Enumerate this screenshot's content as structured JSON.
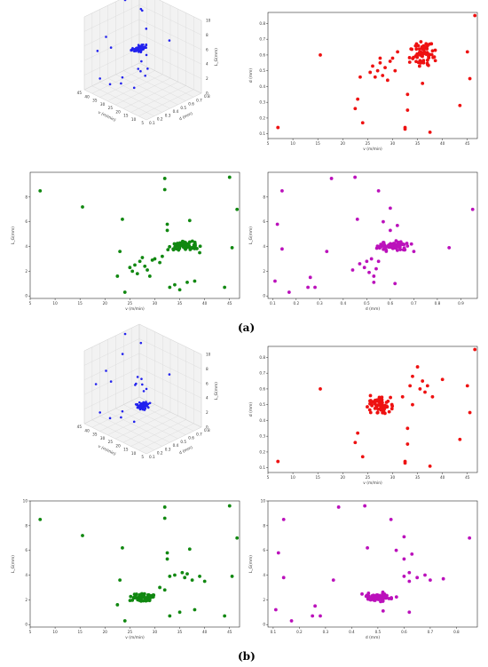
{
  "labels": {
    "a": "(a)",
    "b": "(b)"
  },
  "chart_data": [
    {
      "panel": "(a)",
      "id": "a-3d",
      "type": "scatter3d",
      "xlabel": "v (m/min)",
      "ylabel": "d (mm)",
      "zlabel": "L_G(mm)",
      "xlim": [
        5,
        45
      ],
      "ylim": [
        0.1,
        0.8
      ],
      "zlim": [
        0,
        10
      ],
      "xticks": [
        5,
        10,
        15,
        20,
        25,
        30,
        35,
        40,
        45
      ],
      "yticks": [
        0.1,
        0.2,
        0.3,
        0.4,
        0.5,
        0.6,
        0.7,
        0.8
      ],
      "zticks": [
        0,
        2,
        4,
        6,
        8,
        10
      ],
      "color": "#2222ee",
      "cluster": {
        "v": [
          32,
          39
        ],
        "d": [
          0.5,
          0.72
        ],
        "L": [
          3.5,
          4.5
        ],
        "n": 70
      },
      "points": [
        [
          7,
          0.14,
          8.5
        ],
        [
          15.5,
          0.6,
          7.2
        ],
        [
          23,
          0.3,
          1.5
        ],
        [
          24,
          0.17,
          3.5
        ],
        [
          26,
          0.5,
          1.8
        ],
        [
          27,
          0.55,
          2.4
        ],
        [
          28,
          0.45,
          2.8
        ],
        [
          29,
          0.5,
          2.1
        ],
        [
          31,
          0.55,
          3.0
        ],
        [
          33,
          0.6,
          9.5
        ],
        [
          32,
          0.12,
          8.5
        ],
        [
          34,
          0.35,
          0.7
        ],
        [
          36,
          0.25,
          0.9
        ],
        [
          37,
          0.11,
          6.1
        ],
        [
          38,
          0.75,
          5.7
        ],
        [
          44,
          0.28,
          0.7
        ],
        [
          45.5,
          0.45,
          3.9
        ],
        [
          45,
          0.62,
          9.6
        ],
        [
          46.5,
          0.85,
          7.0
        ]
      ]
    },
    {
      "panel": "(a)",
      "id": "a-vd",
      "type": "scatter",
      "xlabel": "v (m/min)",
      "ylabel": "d (mm)",
      "xlim": [
        5,
        47
      ],
      "ylim": [
        0.07,
        0.87
      ],
      "xticks": [
        5,
        10,
        15,
        20,
        25,
        30,
        35,
        40,
        45
      ],
      "yticks": [
        0.1,
        0.2,
        0.3,
        0.4,
        0.5,
        0.6,
        0.7,
        0.8
      ],
      "color": "#ee1111",
      "cluster": {
        "x": [
          32,
          40
        ],
        "y": [
          0.5,
          0.72
        ],
        "n": 65
      },
      "points": [
        [
          7,
          0.14
        ],
        [
          15.5,
          0.6
        ],
        [
          22.5,
          0.26
        ],
        [
          23,
          0.32
        ],
        [
          23.5,
          0.46
        ],
        [
          24,
          0.17
        ],
        [
          25.5,
          0.49
        ],
        [
          26,
          0.53
        ],
        [
          26.5,
          0.46
        ],
        [
          27,
          0.5
        ],
        [
          27.5,
          0.55
        ],
        [
          28,
          0.47
        ],
        [
          28.5,
          0.52
        ],
        [
          29,
          0.44
        ],
        [
          29.5,
          0.56
        ],
        [
          30,
          0.58
        ],
        [
          30.5,
          0.5
        ],
        [
          31,
          0.62
        ],
        [
          27.5,
          0.58
        ],
        [
          33,
          0.35
        ],
        [
          33,
          0.25
        ],
        [
          32.5,
          0.14
        ],
        [
          32.5,
          0.13
        ],
        [
          36,
          0.42
        ],
        [
          37.5,
          0.11
        ],
        [
          43.5,
          0.28
        ],
        [
          45.5,
          0.45
        ],
        [
          45,
          0.62
        ],
        [
          46.5,
          0.85
        ]
      ]
    },
    {
      "panel": "(a)",
      "id": "a-vL",
      "type": "scatter",
      "xlabel": "v (m/min)",
      "ylabel": "L_G(mm)",
      "xlim": [
        5,
        47
      ],
      "ylim": [
        -0.2,
        10
      ],
      "xticks": [
        5,
        10,
        15,
        20,
        25,
        30,
        35,
        40,
        45
      ],
      "yticks": [
        0,
        2,
        4,
        6,
        8
      ],
      "color": "#118811",
      "cluster": {
        "x": [
          32,
          40
        ],
        "y": [
          3.5,
          4.6
        ],
        "n": 65
      },
      "points": [
        [
          7,
          8.5
        ],
        [
          15.5,
          7.2
        ],
        [
          22.5,
          1.6
        ],
        [
          23,
          3.6
        ],
        [
          23.5,
          6.2
        ],
        [
          24,
          0.3
        ],
        [
          25,
          2.3
        ],
        [
          25.5,
          2.0
        ],
        [
          26,
          2.5
        ],
        [
          26.5,
          1.8
        ],
        [
          27,
          2.8
        ],
        [
          27.5,
          3.1
        ],
        [
          28,
          2.4
        ],
        [
          28.5,
          2.1
        ],
        [
          29,
          1.6
        ],
        [
          29.5,
          2.9
        ],
        [
          30,
          3.0
        ],
        [
          31,
          2.7
        ],
        [
          31.5,
          3.2
        ],
        [
          32,
          9.5
        ],
        [
          32,
          8.6
        ],
        [
          32.5,
          5.8
        ],
        [
          32.5,
          5.3
        ],
        [
          33,
          0.7
        ],
        [
          34,
          0.9
        ],
        [
          35,
          0.5
        ],
        [
          36.5,
          1.1
        ],
        [
          37,
          6.1
        ],
        [
          38,
          1.2
        ],
        [
          39,
          3.5
        ],
        [
          44,
          0.7
        ],
        [
          45,
          9.6
        ],
        [
          45.5,
          3.9
        ],
        [
          46.5,
          7.0
        ]
      ]
    },
    {
      "panel": "(a)",
      "id": "a-dL",
      "type": "scatter",
      "xlabel": "d (mm)",
      "ylabel": "L_G(mm)",
      "xlim": [
        0.08,
        0.97
      ],
      "ylim": [
        -0.2,
        10
      ],
      "xticks": [
        0.1,
        0.2,
        0.3,
        0.4,
        0.5,
        0.6,
        0.7,
        0.8,
        0.9
      ],
      "yticks": [
        0,
        2,
        4,
        6,
        8
      ],
      "color": "#bb11bb",
      "cluster": {
        "x": [
          0.5,
          0.72
        ],
        "y": [
          3.5,
          4.6
        ],
        "n": 65
      },
      "points": [
        [
          0.12,
          5.8
        ],
        [
          0.14,
          8.5
        ],
        [
          0.11,
          1.2
        ],
        [
          0.14,
          3.8
        ],
        [
          0.17,
          0.3
        ],
        [
          0.25,
          0.7
        ],
        [
          0.26,
          1.5
        ],
        [
          0.28,
          0.7
        ],
        [
          0.33,
          3.6
        ],
        [
          0.35,
          9.5
        ],
        [
          0.44,
          2.1
        ],
        [
          0.45,
          9.6
        ],
        [
          0.46,
          6.2
        ],
        [
          0.47,
          2.6
        ],
        [
          0.49,
          2.3
        ],
        [
          0.5,
          2.8
        ],
        [
          0.51,
          1.9
        ],
        [
          0.52,
          3.0
        ],
        [
          0.53,
          1.6
        ],
        [
          0.53,
          1.1
        ],
        [
          0.54,
          2.2
        ],
        [
          0.55,
          2.8
        ],
        [
          0.55,
          8.5
        ],
        [
          0.57,
          6.0
        ],
        [
          0.6,
          5.3
        ],
        [
          0.6,
          7.1
        ],
        [
          0.62,
          1.0
        ],
        [
          0.63,
          5.7
        ],
        [
          0.7,
          3.6
        ],
        [
          0.85,
          3.9
        ],
        [
          0.95,
          7.0
        ]
      ]
    },
    {
      "panel": "(b)",
      "id": "b-3d",
      "type": "scatter3d",
      "xlabel": "v (m/min)",
      "ylabel": "d (mm)",
      "zlabel": "L_G(mm)",
      "xlim": [
        5,
        45
      ],
      "ylim": [
        0.1,
        0.8
      ],
      "zlim": [
        0,
        10
      ],
      "xticks": [
        5,
        10,
        15,
        20,
        25,
        30,
        35,
        40,
        45
      ],
      "yticks": [
        0.1,
        0.2,
        0.3,
        0.4,
        0.5,
        0.6,
        0.7,
        0.8
      ],
      "zticks": [
        0,
        2,
        4,
        6,
        8,
        10
      ],
      "color": "#2222ee",
      "cluster": {
        "v": [
          24,
          31
        ],
        "d": [
          0.42,
          0.58
        ],
        "L": [
          1.7,
          2.7
        ],
        "n": 70
      },
      "points": [
        [
          7,
          0.14,
          8.5
        ],
        [
          15.5,
          0.6,
          7.2
        ],
        [
          23,
          0.3,
          1.5
        ],
        [
          24,
          0.17,
          3.5
        ],
        [
          32,
          0.6,
          3.2
        ],
        [
          33,
          0.35,
          9.5
        ],
        [
          34,
          0.62,
          3.8
        ],
        [
          35,
          0.55,
          4.0
        ],
        [
          36,
          0.65,
          4.2
        ],
        [
          37,
          0.6,
          3.7
        ],
        [
          32,
          0.12,
          8.5
        ],
        [
          34,
          0.35,
          0.7
        ],
        [
          36,
          0.25,
          0.9
        ],
        [
          38,
          0.11,
          6.1
        ],
        [
          40,
          0.68,
          3.9
        ],
        [
          44,
          0.28,
          0.7
        ],
        [
          45.5,
          0.45,
          3.9
        ],
        [
          45,
          0.62,
          9.6
        ],
        [
          46.5,
          0.85,
          7.0
        ]
      ]
    },
    {
      "panel": "(b)",
      "id": "b-vd",
      "type": "scatter",
      "xlabel": "v (m/min)",
      "ylabel": "d (mm)",
      "xlim": [
        5,
        47
      ],
      "ylim": [
        0.07,
        0.87
      ],
      "xticks": [
        5,
        10,
        15,
        20,
        25,
        30,
        35,
        40,
        45
      ],
      "yticks": [
        0.1,
        0.2,
        0.3,
        0.4,
        0.5,
        0.6,
        0.7,
        0.8
      ],
      "color": "#ee1111",
      "cluster": {
        "x": [
          24,
          31
        ],
        "y": [
          0.42,
          0.58
        ],
        "n": 70
      },
      "points": [
        [
          7,
          0.14
        ],
        [
          15.5,
          0.6
        ],
        [
          22.5,
          0.26
        ],
        [
          23,
          0.32
        ],
        [
          24,
          0.17
        ],
        [
          32,
          0.55
        ],
        [
          33,
          0.35
        ],
        [
          33,
          0.25
        ],
        [
          32.5,
          0.14
        ],
        [
          32.5,
          0.13
        ],
        [
          33.5,
          0.62
        ],
        [
          34,
          0.68
        ],
        [
          35,
          0.74
        ],
        [
          35.5,
          0.6
        ],
        [
          36,
          0.65
        ],
        [
          36.5,
          0.58
        ],
        [
          37,
          0.62
        ],
        [
          37.5,
          0.11
        ],
        [
          38,
          0.55
        ],
        [
          40,
          0.66
        ],
        [
          34,
          0.5
        ],
        [
          43.5,
          0.28
        ],
        [
          45.5,
          0.45
        ],
        [
          45,
          0.62
        ],
        [
          46.5,
          0.85
        ]
      ]
    },
    {
      "panel": "(b)",
      "id": "b-vL",
      "type": "scatter",
      "xlabel": "v (m/min)",
      "ylabel": "L_G(mm)",
      "xlim": [
        5,
        47
      ],
      "ylim": [
        -0.2,
        10
      ],
      "xticks": [
        5,
        10,
        15,
        20,
        25,
        30,
        35,
        40,
        45
      ],
      "yticks": [
        0,
        2,
        4,
        6,
        8,
        10
      ],
      "color": "#118811",
      "cluster": {
        "x": [
          24,
          31
        ],
        "y": [
          1.7,
          2.7
        ],
        "n": 70
      },
      "points": [
        [
          7,
          8.5
        ],
        [
          15.5,
          7.2
        ],
        [
          22.5,
          1.6
        ],
        [
          23,
          3.6
        ],
        [
          23.5,
          6.2
        ],
        [
          24,
          0.3
        ],
        [
          31,
          3.0
        ],
        [
          32,
          2.8
        ],
        [
          32,
          9.5
        ],
        [
          32,
          8.6
        ],
        [
          32.5,
          5.8
        ],
        [
          32.5,
          5.3
        ],
        [
          33,
          3.9
        ],
        [
          33,
          0.7
        ],
        [
          34,
          4.0
        ],
        [
          35,
          1.0
        ],
        [
          35.5,
          4.2
        ],
        [
          36,
          3.8
        ],
        [
          36.5,
          4.1
        ],
        [
          37,
          6.1
        ],
        [
          37.5,
          3.6
        ],
        [
          38,
          1.2
        ],
        [
          39,
          3.9
        ],
        [
          40,
          3.5
        ],
        [
          44,
          0.7
        ],
        [
          45,
          9.6
        ],
        [
          45.5,
          3.9
        ],
        [
          46.5,
          7.0
        ]
      ]
    },
    {
      "panel": "(b)",
      "id": "b-dL",
      "type": "scatter",
      "xlabel": "d (mm)",
      "ylabel": "L_G(mm)",
      "xlim": [
        0.08,
        0.88
      ],
      "ylim": [
        -0.2,
        10
      ],
      "xticks": [
        0.1,
        0.2,
        0.3,
        0.4,
        0.5,
        0.6,
        0.7,
        0.8
      ],
      "yticks": [
        0,
        2,
        4,
        6,
        8,
        10
      ],
      "color": "#bb11bb",
      "cluster": {
        "x": [
          0.42,
          0.58
        ],
        "y": [
          1.7,
          2.7
        ],
        "n": 70
      },
      "points": [
        [
          0.12,
          5.8
        ],
        [
          0.14,
          8.5
        ],
        [
          0.11,
          1.2
        ],
        [
          0.14,
          3.8
        ],
        [
          0.17,
          0.3
        ],
        [
          0.25,
          0.7
        ],
        [
          0.26,
          1.5
        ],
        [
          0.28,
          0.7
        ],
        [
          0.33,
          3.6
        ],
        [
          0.35,
          9.5
        ],
        [
          0.45,
          9.6
        ],
        [
          0.46,
          6.2
        ],
        [
          0.52,
          1.1
        ],
        [
          0.55,
          8.5
        ],
        [
          0.57,
          6.0
        ],
        [
          0.6,
          5.3
        ],
        [
          0.6,
          7.1
        ],
        [
          0.6,
          3.9
        ],
        [
          0.62,
          4.2
        ],
        [
          0.63,
          5.7
        ],
        [
          0.62,
          3.5
        ],
        [
          0.65,
          3.8
        ],
        [
          0.68,
          4.0
        ],
        [
          0.7,
          3.6
        ],
        [
          0.75,
          3.7
        ],
        [
          0.62,
          1.0
        ],
        [
          0.85,
          7.0
        ]
      ]
    }
  ]
}
